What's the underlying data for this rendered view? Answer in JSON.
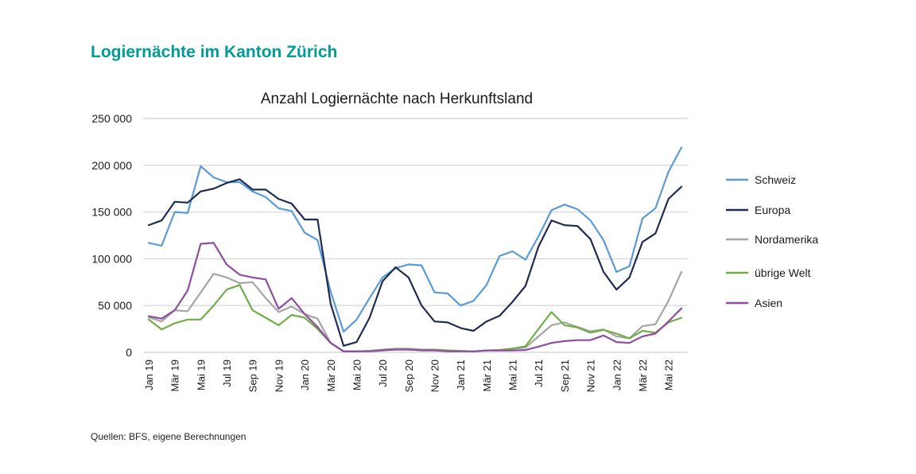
{
  "header": {
    "title": "Logiernächte im Kanton Zürich"
  },
  "footer": {
    "source": "Quellen: BFS, eigene Berechnungen"
  },
  "chart_data": {
    "type": "line",
    "title": "Anzahl Logiernächte nach Herkunftsland",
    "xlabel": "",
    "ylabel": "",
    "ylim": [
      0,
      250000
    ],
    "yticks": [
      0,
      50000,
      100000,
      150000,
      200000,
      250000
    ],
    "ytick_labels": [
      "0",
      "50 000",
      "100 000",
      "150 000",
      "200 000",
      "250 000"
    ],
    "grid": true,
    "legend_position": "right",
    "x": [
      "Jan 19",
      "Feb 19",
      "Mär 19",
      "Apr 19",
      "Mai 19",
      "Jun 19",
      "Jul 19",
      "Aug 19",
      "Sep 19",
      "Okt 19",
      "Nov 19",
      "Dez 19",
      "Jan 20",
      "Feb 20",
      "Mär 20",
      "Apr 20",
      "Mai 20",
      "Jun 20",
      "Jul 20",
      "Aug 20",
      "Sep 20",
      "Okt 20",
      "Nov 20",
      "Dez 20",
      "Jan 21",
      "Feb 21",
      "Mär 21",
      "Apr 21",
      "Mai 21",
      "Jun 21",
      "Jul 21",
      "Aug 21",
      "Sep 21",
      "Okt 21",
      "Nov 21",
      "Dez 21",
      "Jan 22",
      "Feb 22",
      "Mär 22",
      "Apr 22",
      "Mai 22",
      "Jun 22"
    ],
    "xtick_labels": [
      "Jan 19",
      "Mär 19",
      "Mai 19",
      "Jul 19",
      "Sep 19",
      "Nov 19",
      "Jan 20",
      "Mär 20",
      "Mai 20",
      "Jul 20",
      "Sep 20",
      "Nov 20",
      "Jan 21",
      "Mär 21",
      "Mai 21",
      "Jul 21",
      "Sep 21",
      "Nov 21",
      "Jan 22",
      "Mär 22",
      "Mai 22"
    ],
    "series": [
      {
        "name": "Schweiz",
        "color": "#5b9bd5",
        "values": [
          117000,
          114000,
          150000,
          149000,
          199000,
          187000,
          182000,
          182000,
          172000,
          166000,
          154000,
          151000,
          128000,
          120000,
          65000,
          22000,
          35000,
          58000,
          80000,
          90000,
          94000,
          93000,
          64000,
          63000,
          50000,
          55000,
          72000,
          103000,
          108000,
          99000,
          124000,
          152000,
          158000,
          153000,
          141000,
          120000,
          86000,
          92000,
          143000,
          154000,
          193000,
          219000
        ]
      },
      {
        "name": "Europa",
        "color": "#1f2d52",
        "values": [
          136000,
          141000,
          161000,
          160000,
          172000,
          175000,
          181000,
          185000,
          174000,
          174000,
          164000,
          159000,
          142000,
          142000,
          52000,
          7000,
          11000,
          37000,
          76000,
          91000,
          80000,
          50000,
          33000,
          32000,
          26000,
          23000,
          33000,
          39000,
          54000,
          71000,
          113000,
          141000,
          136000,
          135000,
          121000,
          86000,
          67000,
          80000,
          118000,
          127000,
          164000,
          177000
        ]
      },
      {
        "name": "Nordamerika",
        "color": "#a5a5a5",
        "values": [
          37500,
          33000,
          45000,
          44000,
          64000,
          84000,
          80000,
          74000,
          75000,
          58000,
          43000,
          49000,
          41000,
          36000,
          10000,
          1000,
          1000,
          1500,
          3000,
          4000,
          4000,
          3000,
          3000,
          2000,
          1500,
          1000,
          2000,
          2000,
          4000,
          5000,
          17000,
          29000,
          32000,
          27000,
          22500,
          24500,
          17000,
          15000,
          28000,
          30000,
          55000,
          86000
        ]
      },
      {
        "name": "übrige Welt",
        "color": "#70ad47",
        "values": [
          35000,
          24500,
          31000,
          35000,
          35000,
          50000,
          67000,
          72000,
          45000,
          37000,
          29000,
          40000,
          37000,
          25000,
          10000,
          1000,
          1000,
          1500,
          2500,
          3000,
          3000,
          2500,
          2500,
          2000,
          1500,
          1000,
          2000,
          2500,
          4000,
          6500,
          25000,
          43000,
          29000,
          26500,
          21000,
          24000,
          20000,
          15000,
          23000,
          21000,
          32000,
          37000
        ]
      },
      {
        "name": "Asien",
        "color": "#8e4fa0",
        "values": [
          38600,
          36000,
          45000,
          66000,
          116000,
          117000,
          94000,
          83000,
          80000,
          78000,
          46500,
          58000,
          41000,
          27000,
          10000,
          1000,
          1000,
          1000,
          2000,
          3000,
          3000,
          2000,
          2000,
          1000,
          1000,
          1000,
          2000,
          2000,
          2000,
          2500,
          6000,
          10000,
          12000,
          13000,
          13000,
          18000,
          11000,
          10000,
          17000,
          20000,
          33000,
          47000
        ]
      }
    ]
  }
}
